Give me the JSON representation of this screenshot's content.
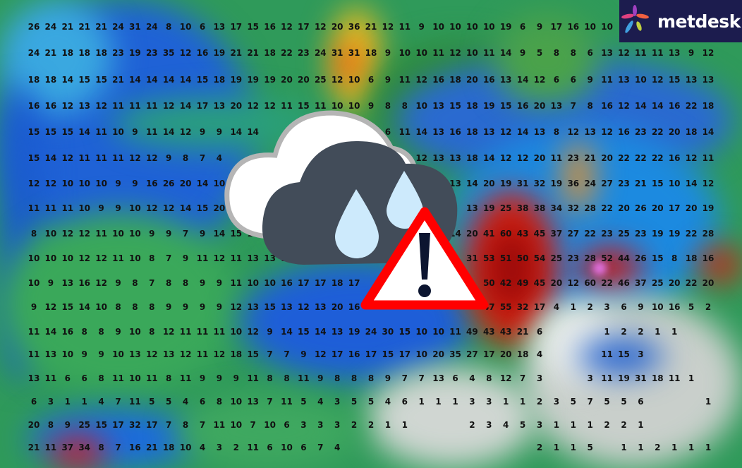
{
  "logo": {
    "text": "metdesk"
  },
  "icons": {
    "weather": "cloud-rain-icon",
    "alert": "warning-triangle-icon"
  },
  "colors": {
    "logo_bg": "#1c1c4e",
    "warning_red": "#ff0000",
    "cloud_dark": "#424c59",
    "raindrop": "#cdeafc"
  },
  "grid_values": [
    [
      26,
      24,
      21,
      21,
      21,
      24,
      31,
      24,
      8,
      10,
      6,
      13,
      17,
      15,
      16,
      12,
      17,
      12,
      20,
      36,
      21,
      12,
      11,
      9,
      10,
      10,
      10,
      10,
      19,
      6,
      9,
      17,
      16,
      10,
      10,
      null,
      null,
      null,
      null,
      null,
      null
    ],
    [
      24,
      21,
      18,
      18,
      18,
      23,
      19,
      23,
      35,
      12,
      16,
      19,
      21,
      21,
      18,
      22,
      23,
      24,
      31,
      31,
      18,
      9,
      10,
      10,
      11,
      12,
      10,
      11,
      14,
      9,
      5,
      8,
      8,
      6,
      13,
      12,
      11,
      11,
      13,
      9,
      12
    ],
    [
      18,
      18,
      14,
      15,
      15,
      21,
      14,
      14,
      14,
      14,
      15,
      18,
      19,
      19,
      19,
      20,
      20,
      25,
      12,
      10,
      6,
      9,
      11,
      12,
      16,
      18,
      20,
      16,
      13,
      14,
      12,
      6,
      6,
      9,
      11,
      13,
      10,
      12,
      15,
      13,
      13
    ],
    [
      16,
      16,
      12,
      13,
      12,
      11,
      11,
      11,
      12,
      14,
      17,
      13,
      20,
      12,
      12,
      11,
      15,
      11,
      10,
      10,
      9,
      8,
      8,
      10,
      13,
      15,
      18,
      19,
      15,
      16,
      20,
      13,
      7,
      8,
      16,
      12,
      14,
      14,
      16,
      22,
      18
    ],
    [
      15,
      15,
      15,
      14,
      11,
      10,
      9,
      11,
      14,
      12,
      9,
      9,
      14,
      14,
      null,
      null,
      null,
      null,
      null,
      null,
      null,
      6,
      11,
      14,
      13,
      16,
      18,
      13,
      12,
      14,
      13,
      8,
      12,
      13,
      12,
      16,
      23,
      22,
      20,
      18,
      14
    ],
    [
      15,
      14,
      12,
      11,
      11,
      11,
      12,
      12,
      9,
      8,
      7,
      4,
      null,
      null,
      null,
      null,
      null,
      null,
      null,
      null,
      null,
      null,
      null,
      12,
      13,
      13,
      18,
      14,
      12,
      12,
      20,
      11,
      23,
      21,
      20,
      22,
      22,
      22,
      16,
      12,
      11
    ],
    [
      12,
      12,
      10,
      10,
      10,
      9,
      9,
      16,
      26,
      20,
      14,
      10,
      null,
      null,
      null,
      null,
      null,
      null,
      null,
      null,
      null,
      null,
      null,
      null,
      null,
      13,
      14,
      20,
      19,
      31,
      32,
      19,
      36,
      24,
      27,
      23,
      21,
      15,
      10,
      14,
      12
    ],
    [
      11,
      11,
      11,
      10,
      9,
      9,
      10,
      12,
      12,
      14,
      15,
      20,
      null,
      null,
      null,
      null,
      null,
      null,
      null,
      null,
      null,
      null,
      null,
      null,
      null,
      null,
      13,
      19,
      25,
      38,
      38,
      34,
      32,
      28,
      22,
      20,
      26,
      20,
      17,
      20,
      19
    ],
    [
      8,
      10,
      12,
      12,
      11,
      10,
      10,
      9,
      9,
      7,
      9,
      14,
      15,
      10,
      null,
      null,
      null,
      null,
      null,
      null,
      null,
      null,
      null,
      null,
      null,
      14,
      20,
      41,
      60,
      43,
      45,
      37,
      27,
      22,
      23,
      25,
      23,
      19,
      19,
      22,
      28
    ],
    [
      10,
      10,
      10,
      12,
      12,
      11,
      10,
      8,
      7,
      9,
      11,
      12,
      11,
      13,
      13,
      14,
      11,
      13,
      null,
      null,
      null,
      null,
      null,
      null,
      null,
      null,
      31,
      53,
      51,
      50,
      54,
      25,
      23,
      28,
      52,
      44,
      26,
      15,
      8,
      18,
      16
    ],
    [
      10,
      9,
      13,
      16,
      12,
      9,
      8,
      7,
      8,
      8,
      9,
      9,
      11,
      10,
      10,
      16,
      17,
      17,
      18,
      17,
      null,
      null,
      null,
      null,
      null,
      null,
      null,
      50,
      42,
      49,
      45,
      20,
      12,
      60,
      22,
      46,
      37,
      25,
      20,
      22,
      20
    ],
    [
      9,
      12,
      15,
      14,
      10,
      8,
      8,
      8,
      9,
      9,
      9,
      9,
      12,
      13,
      15,
      13,
      12,
      13,
      20,
      16,
      null,
      null,
      null,
      null,
      null,
      null,
      null,
      47,
      55,
      32,
      17,
      4,
      1,
      2,
      3,
      6,
      9,
      10,
      16,
      5,
      2
    ],
    [
      11,
      14,
      16,
      8,
      8,
      9,
      10,
      8,
      12,
      11,
      11,
      11,
      10,
      12,
      9,
      14,
      15,
      14,
      13,
      19,
      24,
      30,
      15,
      10,
      10,
      11,
      49,
      43,
      43,
      21,
      6,
      null,
      null,
      null,
      1,
      2,
      2,
      1,
      1,
      null,
      null
    ],
    [
      11,
      13,
      10,
      9,
      9,
      10,
      13,
      12,
      13,
      12,
      11,
      12,
      18,
      15,
      7,
      7,
      9,
      12,
      17,
      16,
      17,
      15,
      17,
      10,
      20,
      35,
      27,
      17,
      20,
      18,
      4,
      null,
      null,
      null,
      11,
      15,
      3,
      null,
      null,
      null,
      null
    ],
    [
      13,
      11,
      6,
      6,
      8,
      11,
      10,
      11,
      8,
      11,
      9,
      9,
      9,
      11,
      8,
      8,
      11,
      9,
      8,
      8,
      8,
      9,
      7,
      7,
      13,
      6,
      4,
      8,
      12,
      7,
      3,
      null,
      null,
      3,
      11,
      19,
      31,
      18,
      11,
      1,
      null
    ],
    [
      6,
      3,
      1,
      1,
      4,
      7,
      11,
      5,
      5,
      4,
      6,
      8,
      10,
      13,
      7,
      11,
      5,
      4,
      3,
      5,
      5,
      4,
      6,
      1,
      1,
      1,
      3,
      3,
      1,
      1,
      2,
      3,
      5,
      7,
      5,
      5,
      6,
      null,
      null,
      null,
      1
    ],
    [
      20,
      8,
      9,
      25,
      15,
      17,
      32,
      17,
      7,
      8,
      7,
      11,
      10,
      7,
      10,
      6,
      3,
      3,
      3,
      2,
      2,
      1,
      1,
      null,
      null,
      null,
      2,
      3,
      4,
      5,
      3,
      1,
      1,
      1,
      2,
      2,
      1,
      null,
      null,
      null,
      null
    ],
    [
      21,
      11,
      37,
      34,
      8,
      7,
      16,
      21,
      18,
      10,
      4,
      3,
      2,
      11,
      6,
      10,
      6,
      7,
      4,
      null,
      null,
      null,
      null,
      null,
      null,
      null,
      null,
      null,
      null,
      null,
      2,
      1,
      1,
      5,
      null,
      1,
      1,
      2,
      1,
      1,
      1
    ]
  ]
}
